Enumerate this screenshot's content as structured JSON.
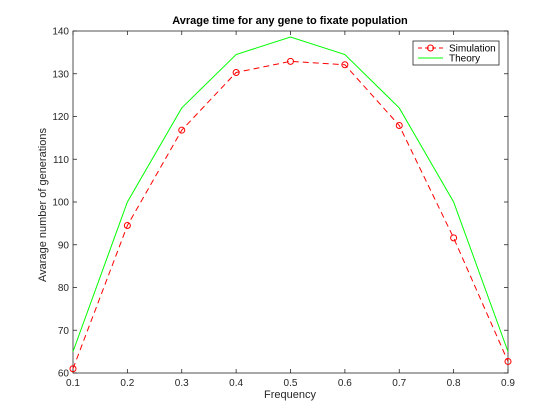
{
  "chart_data": {
    "type": "line",
    "title": "Avrage time for any gene to fixate population",
    "xlabel": "Frequency",
    "ylabel": "Avarage number of generations",
    "xlim": [
      0.1,
      0.9
    ],
    "ylim": [
      60,
      140
    ],
    "xticks": [
      0.1,
      0.2,
      0.3,
      0.4,
      0.5,
      0.6,
      0.7,
      0.8,
      0.9
    ],
    "yticks": [
      60,
      70,
      80,
      90,
      100,
      110,
      120,
      130,
      140
    ],
    "xtick_labels": [
      "0.1",
      "0.2",
      "0.3",
      "0.4",
      "0.5",
      "0.6",
      "0.7",
      "0.8",
      "0.9"
    ],
    "ytick_labels": [
      "60",
      "70",
      "80",
      "90",
      "100",
      "110",
      "120",
      "130",
      "140"
    ],
    "grid": false,
    "legend_position": "top-right",
    "x": [
      0.1,
      0.2,
      0.3,
      0.4,
      0.5,
      0.6,
      0.7,
      0.8,
      0.9
    ],
    "series": [
      {
        "name": "Simulation",
        "color": "#ff0000",
        "line_style": "dashed",
        "marker": "circle",
        "values": [
          61.0,
          94.5,
          116.8,
          130.3,
          132.9,
          132.1,
          117.9,
          91.6,
          62.7
        ]
      },
      {
        "name": "Theory",
        "color": "#00ff00",
        "line_style": "solid",
        "marker": "none",
        "values": [
          65.0,
          100.0,
          122.0,
          134.5,
          138.6,
          134.5,
          122.0,
          100.0,
          65.0
        ]
      }
    ]
  }
}
